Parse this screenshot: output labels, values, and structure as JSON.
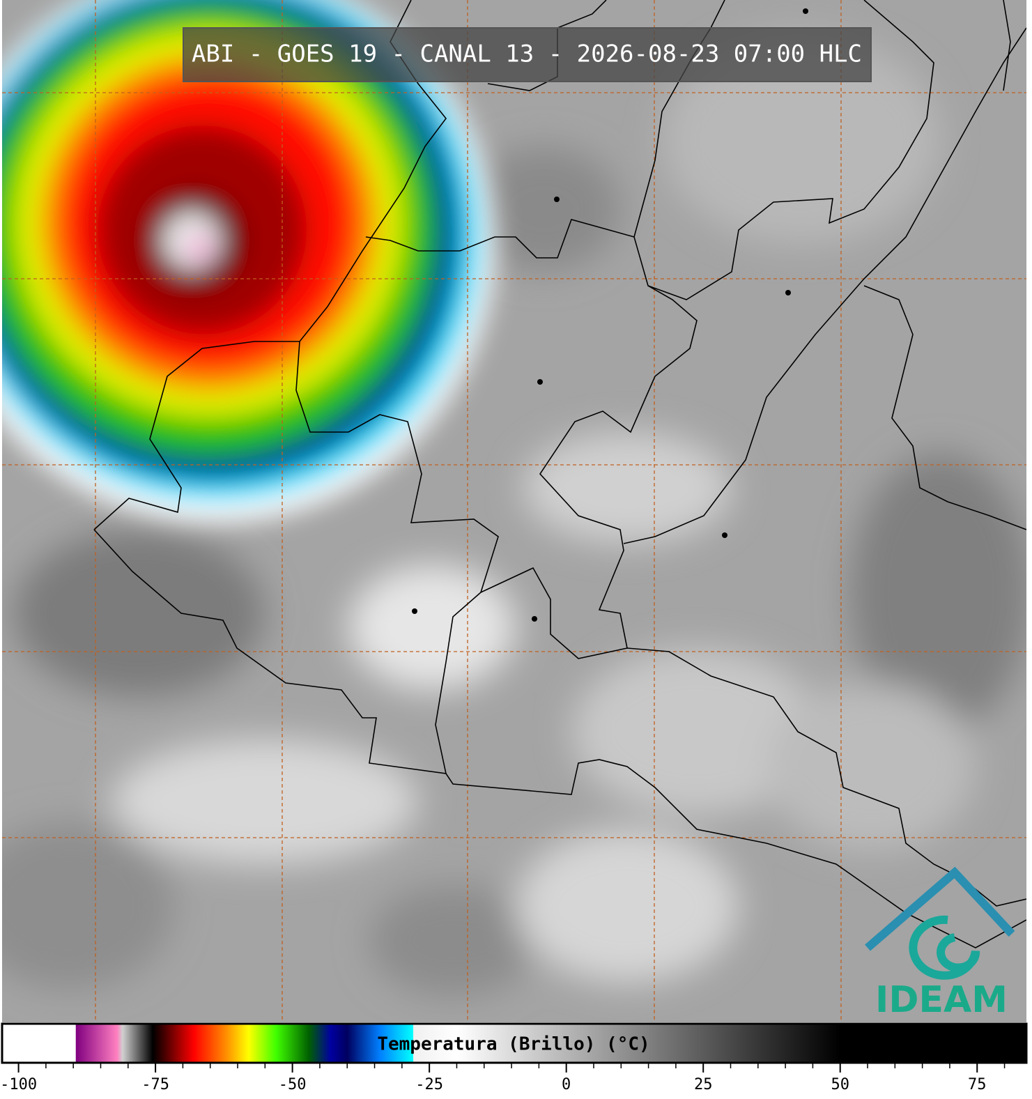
{
  "header": {
    "title": "ABI - GOES 19 - CANAL 13 - 2026-08-23 07:00 HLC"
  },
  "logo": {
    "text": "IDEAM"
  },
  "colorbar": {
    "label": "Temperatura (Brillo) (°C)",
    "lim": [
      -103,
      84
    ],
    "ticks": [
      -100,
      -75,
      -50,
      -25,
      0,
      25,
      50,
      75
    ],
    "minor_ticks": [
      -95,
      -90,
      -85,
      -80,
      -70,
      -65,
      -60,
      -55,
      -45,
      -40,
      -35,
      -30,
      -20,
      -15,
      -10,
      -5,
      5,
      10,
      15,
      20,
      30,
      35,
      40,
      45,
      55,
      60,
      65,
      70,
      80
    ],
    "colors": [
      {
        "value": -103,
        "color": "#ffffff"
      },
      {
        "value": -89.6,
        "color": "#ffffff"
      },
      {
        "value": -89.5,
        "color": "#800080"
      },
      {
        "value": -82,
        "color": "#ff80c0"
      },
      {
        "value": -81,
        "color": "#d0d0d0"
      },
      {
        "value": -75.5,
        "color": "#000000"
      },
      {
        "value": -74,
        "color": "#300000"
      },
      {
        "value": -68,
        "color": "#ff0000"
      },
      {
        "value": -62,
        "color": "#ff9000"
      },
      {
        "value": -58,
        "color": "#ffff00"
      },
      {
        "value": -53,
        "color": "#40ff00"
      },
      {
        "value": -47,
        "color": "#006000"
      },
      {
        "value": -43,
        "color": "#0000a0"
      },
      {
        "value": -40,
        "color": "#000060"
      },
      {
        "value": -34,
        "color": "#0080ff"
      },
      {
        "value": -28,
        "color": "#00ffff"
      },
      {
        "value": -27.9,
        "color": "#f0f0f0"
      },
      {
        "value": -20,
        "color": "#ffffff"
      },
      {
        "value": 50,
        "color": "#000000"
      },
      {
        "value": 84,
        "color": "#000000"
      }
    ]
  }
}
